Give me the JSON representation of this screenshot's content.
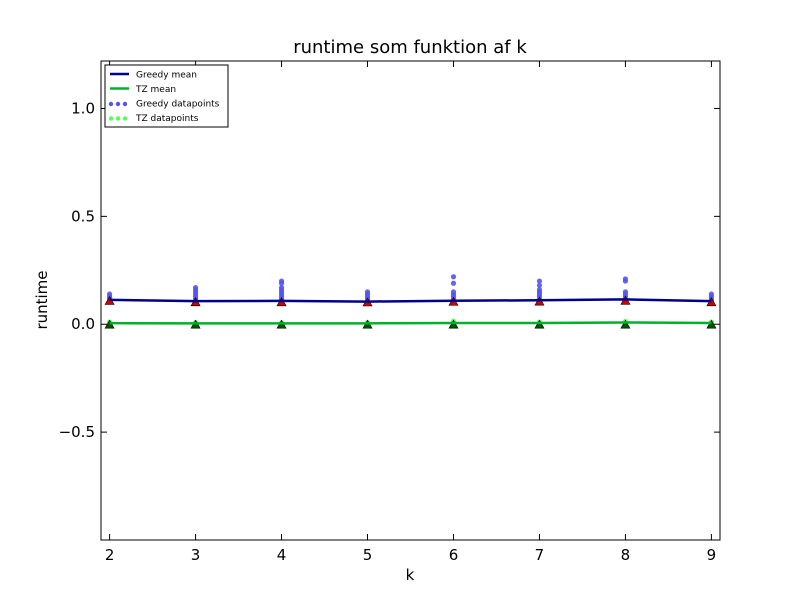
{
  "chart_data": {
    "type": "line",
    "title": "runtime som funktion af k",
    "xlabel": "k",
    "ylabel": "runtime",
    "xlim": [
      1.9,
      9.1
    ],
    "ylim": [
      -1.0,
      1.22
    ],
    "xticks": [
      2,
      3,
      4,
      5,
      6,
      7,
      8,
      9
    ],
    "xtick_labels": [
      "2",
      "3",
      "4",
      "5",
      "6",
      "7",
      "8",
      "9"
    ],
    "yticks": [
      1.0,
      0.5,
      0.0,
      -0.5
    ],
    "ytick_labels": [
      "1.0",
      "0.5",
      "0.0",
      "−0.5"
    ],
    "grid": false,
    "legend_position": "top-left",
    "x": [
      2,
      3,
      4,
      5,
      6,
      7,
      8,
      9
    ],
    "series": [
      {
        "name": "Greedy mean",
        "kind": "line",
        "color": "#00008b",
        "values": [
          0.113,
          0.107,
          0.108,
          0.105,
          0.109,
          0.111,
          0.115,
          0.107
        ]
      },
      {
        "name": "TZ mean",
        "kind": "line",
        "color": "#00b22a",
        "values": [
          0.005,
          0.004,
          0.004,
          0.004,
          0.006,
          0.006,
          0.008,
          0.006
        ]
      },
      {
        "name": "Greedy datapoints",
        "kind": "points",
        "color": "#5555ee",
        "points": [
          [
            2,
            0.14
          ],
          [
            2,
            0.13
          ],
          [
            2,
            0.12
          ],
          [
            2,
            0.11
          ],
          [
            3,
            0.17
          ],
          [
            3,
            0.16
          ],
          [
            3,
            0.15
          ],
          [
            3,
            0.14
          ],
          [
            3,
            0.13
          ],
          [
            3,
            0.12
          ],
          [
            3,
            0.11
          ],
          [
            4,
            0.2
          ],
          [
            4,
            0.19
          ],
          [
            4,
            0.17
          ],
          [
            4,
            0.16
          ],
          [
            4,
            0.15
          ],
          [
            4,
            0.14
          ],
          [
            4,
            0.13
          ],
          [
            4,
            0.12
          ],
          [
            4,
            0.11
          ],
          [
            5,
            0.15
          ],
          [
            5,
            0.14
          ],
          [
            5,
            0.13
          ],
          [
            5,
            0.12
          ],
          [
            5,
            0.11
          ],
          [
            6,
            0.22
          ],
          [
            6,
            0.19
          ],
          [
            6,
            0.15
          ],
          [
            6,
            0.14
          ],
          [
            6,
            0.13
          ],
          [
            6,
            0.12
          ],
          [
            6,
            0.11
          ],
          [
            7,
            0.2
          ],
          [
            7,
            0.18
          ],
          [
            7,
            0.16
          ],
          [
            7,
            0.15
          ],
          [
            7,
            0.14
          ],
          [
            7,
            0.13
          ],
          [
            7,
            0.12
          ],
          [
            7,
            0.11
          ],
          [
            8,
            0.21
          ],
          [
            8,
            0.2
          ],
          [
            8,
            0.15
          ],
          [
            8,
            0.14
          ],
          [
            8,
            0.13
          ],
          [
            8,
            0.12
          ],
          [
            9,
            0.14
          ],
          [
            9,
            0.13
          ],
          [
            9,
            0.12
          ],
          [
            9,
            0.11
          ]
        ]
      },
      {
        "name": "TZ datapoints",
        "kind": "points",
        "color": "#55ff55",
        "points": [
          [
            2,
            0.01
          ],
          [
            2,
            0.006
          ],
          [
            3,
            0.008
          ],
          [
            3,
            0.005
          ],
          [
            4,
            0.007
          ],
          [
            4,
            0.004
          ],
          [
            5,
            0.008
          ],
          [
            5,
            0.005
          ],
          [
            6,
            0.014
          ],
          [
            6,
            0.008
          ],
          [
            7,
            0.01
          ],
          [
            7,
            0.006
          ],
          [
            8,
            0.013
          ],
          [
            8,
            0.009
          ],
          [
            9,
            0.01
          ],
          [
            9,
            0.006
          ]
        ]
      }
    ],
    "unlabeled_markers": [
      {
        "marker": "triangle",
        "color": "#cc0000",
        "values": [
          0.11,
          0.104,
          0.104,
          0.103,
          0.106,
          0.107,
          0.111,
          0.104
        ]
      },
      {
        "marker": "triangle",
        "color": "#005500",
        "values": [
          0.0,
          0.0,
          0.0,
          0.0,
          0.0,
          0.0,
          0.0,
          0.0
        ]
      }
    ]
  }
}
